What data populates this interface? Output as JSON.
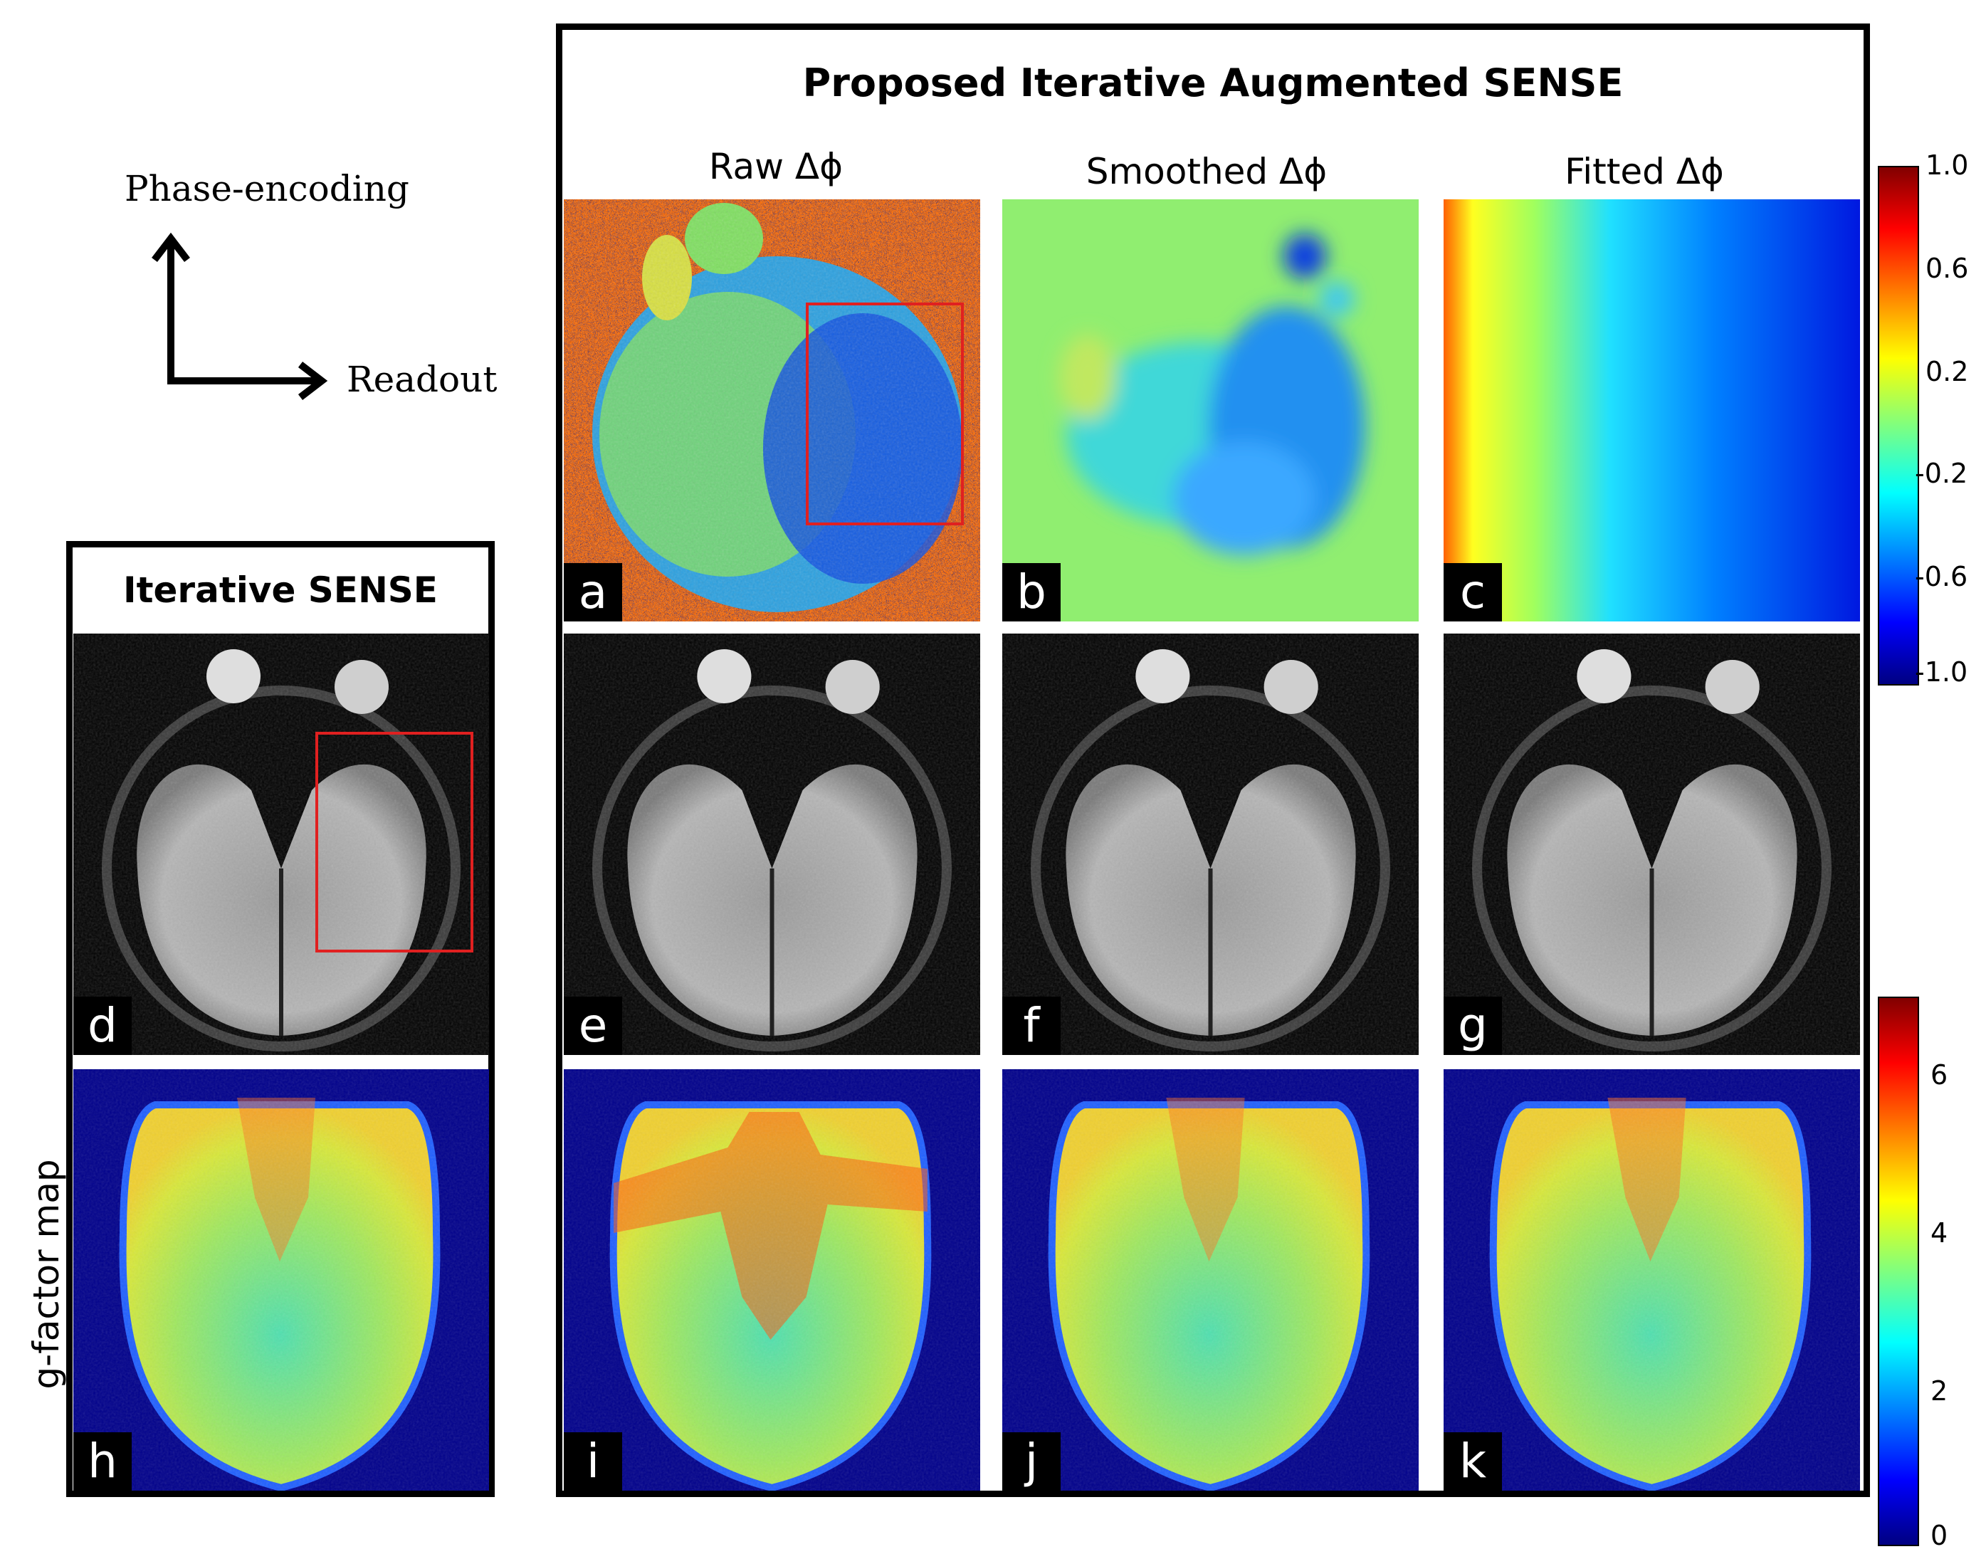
{
  "header": {
    "main_title": "Proposed Iterative Augmented SENSE",
    "left_title": "Iterative SENSE"
  },
  "columns": {
    "raw": "Raw Δϕ",
    "smoothed": "Smoothed Δϕ",
    "fitted": "Fitted Δϕ"
  },
  "axes": {
    "phase": "Phase-encoding",
    "readout": "Readout"
  },
  "side_label": "g-factor map",
  "panels": {
    "a": "a",
    "b": "b",
    "c": "c",
    "d": "d",
    "e": "e",
    "f": "f",
    "g": "g",
    "h": "h",
    "i": "i",
    "j": "j",
    "k": "k"
  },
  "colorbar_phase": {
    "ticks": [
      "1.0",
      "0.6",
      "0.2",
      "-0.2",
      "-0.6",
      "-1.0"
    ]
  },
  "colorbar_g": {
    "ticks": [
      "6",
      "4",
      "2",
      "0"
    ]
  },
  "colors": {
    "roi": "#e02020",
    "bg_blue": "#00008b"
  }
}
